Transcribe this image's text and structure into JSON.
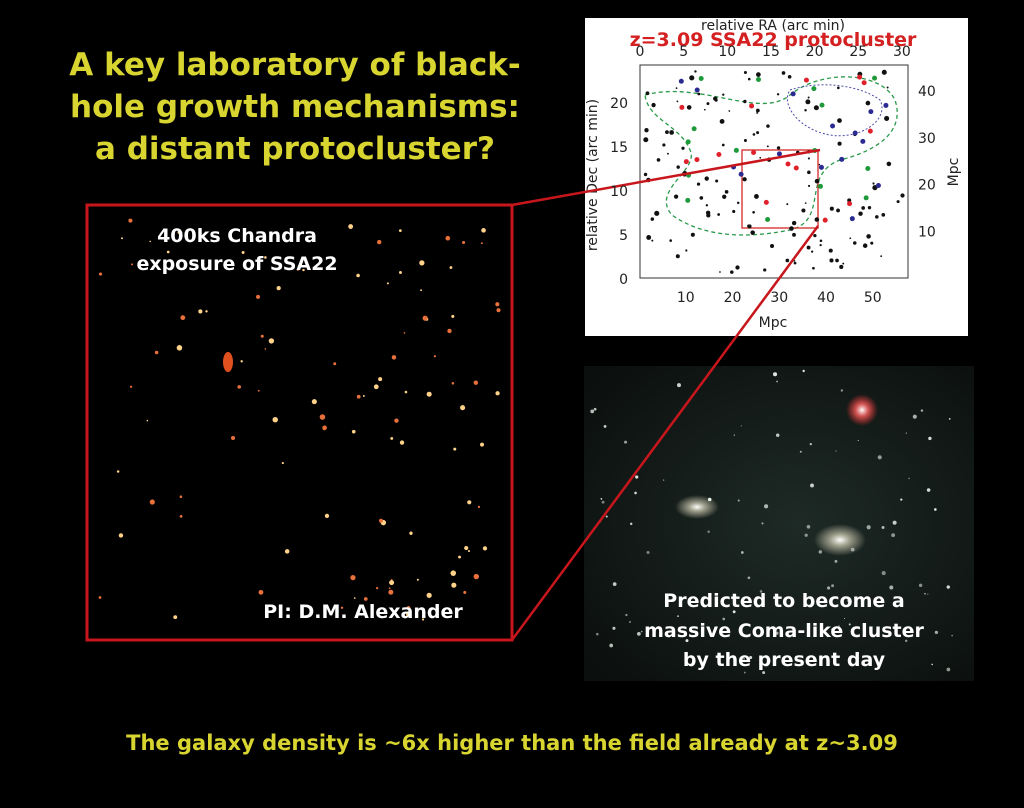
{
  "title": [
    "A key laboratory of black-",
    "hole growth mechanisms:",
    "a distant protocluster?"
  ],
  "chandra": {
    "caption": [
      "400ks Chandra",
      "exposure of SSA22"
    ],
    "credit": "PI: D.M. Alexander"
  },
  "map": {
    "title": "z=3.09 SSA22 protocluster",
    "top_axis_label": "relative RA (arc min)",
    "top_ticks": [
      0,
      5,
      10,
      15,
      20,
      25,
      30
    ],
    "left_axis_label": "relative Dec (arc min)",
    "left_ticks": [
      0,
      5,
      10,
      15,
      20
    ],
    "right_axis_label": "Mpc",
    "right_ticks": [
      10,
      20,
      30,
      40
    ],
    "bottom_axis_label": "Mpc",
    "bottom_ticks": [
      10,
      20,
      30,
      40,
      50
    ]
  },
  "optical": {
    "caption": [
      "Predicted to become a",
      "massive Coma-like cluster",
      "by the present day"
    ]
  },
  "footer": "The galaxy density is ~6x higher than the field already at z~3.09"
}
